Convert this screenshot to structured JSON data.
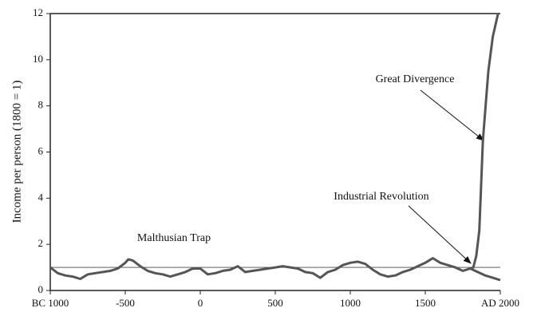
{
  "chart_data": {
    "type": "line",
    "ylabel": "Income per person (1800 = 1)",
    "xlim": [
      -1000,
      2000
    ],
    "ylim": [
      0,
      12
    ],
    "xticks": [
      {
        "value": -1000,
        "label": "BC 1000"
      },
      -500,
      0,
      500,
      1000,
      1500,
      {
        "value": 2000,
        "label": "AD 2000"
      }
    ],
    "yticks": [
      0,
      2,
      4,
      6,
      8,
      10,
      12
    ],
    "hline": 1,
    "annotations": [
      "Great Divergence",
      "Industrial Revolution",
      "Malthusian Trap"
    ],
    "series": [
      {
        "color": "#555555",
        "x": [
          -1000,
          -950,
          -900,
          -850,
          -800,
          -750,
          -700,
          -650,
          -600,
          -550,
          -500,
          -480,
          -450,
          -400,
          -350,
          -300,
          -250,
          -200,
          -150,
          -100,
          -50,
          0,
          50,
          100,
          150,
          200,
          250,
          300,
          350,
          400,
          450,
          500,
          550,
          600,
          650,
          700,
          750,
          800,
          850,
          900,
          950,
          1000,
          1050,
          1100,
          1150,
          1200,
          1250,
          1300,
          1350,
          1400,
          1450,
          1500,
          1550,
          1600,
          1650,
          1700,
          1750,
          1800,
          1850,
          1900,
          1950,
          2000
        ],
        "values": [
          1.0,
          0.75,
          0.65,
          0.6,
          0.5,
          0.7,
          0.75,
          0.8,
          0.85,
          0.95,
          1.2,
          1.35,
          1.3,
          1.05,
          0.85,
          0.75,
          0.7,
          0.6,
          0.7,
          0.8,
          0.95,
          0.95,
          0.7,
          0.75,
          0.85,
          0.9,
          1.05,
          0.8,
          0.85,
          0.9,
          0.95,
          1.0,
          1.05,
          1.0,
          0.95,
          0.8,
          0.75,
          0.55,
          0.8,
          0.9,
          1.1,
          1.2,
          1.25,
          1.15,
          0.9,
          0.7,
          0.6,
          0.65,
          0.8,
          0.9,
          1.05,
          1.2,
          1.4,
          1.2,
          1.1,
          1.0,
          0.85,
          0.95,
          0.8,
          0.65,
          0.55,
          0.45
        ]
      },
      {
        "color": "#555555",
        "x": [
          1800,
          1820,
          1840,
          1860,
          1884,
          1920,
          1950,
          1985
        ],
        "values": [
          0.95,
          1.0,
          1.5,
          2.6,
          6.5,
          9.5,
          11,
          12
        ]
      }
    ]
  }
}
